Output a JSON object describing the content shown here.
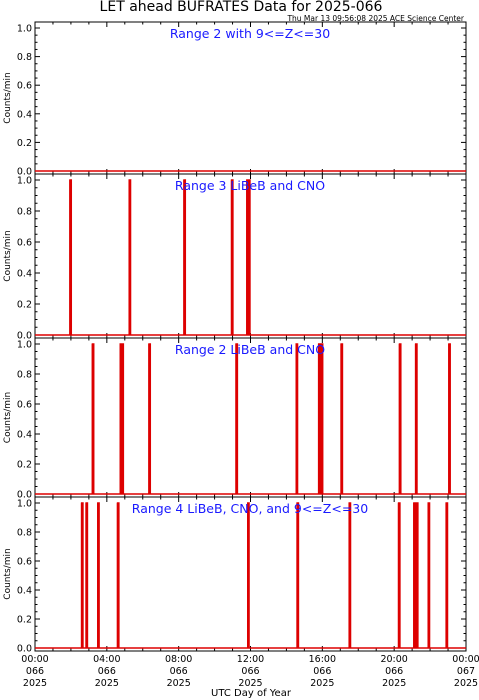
{
  "title": "LET ahead BUFRATES Data for 2025-066",
  "timestamp": "Thu Mar 13 09:56:08 2025 ACE Science Center",
  "xlabel": "UTC Day of Year",
  "colors": {
    "spike": "#dd0000",
    "label": "#1a1aff",
    "axis": "#000000"
  },
  "chart_data": {
    "type": "line",
    "xlim_hours": [
      0,
      24
    ],
    "x_ticks": [
      {
        "hour": 0,
        "lines": [
          "00:00",
          "066",
          "2025"
        ]
      },
      {
        "hour": 4,
        "lines": [
          "04:00",
          "066",
          "2025"
        ]
      },
      {
        "hour": 8,
        "lines": [
          "08:00",
          "066",
          "2025"
        ]
      },
      {
        "hour": 12,
        "lines": [
          "12:00",
          "066",
          "2025"
        ]
      },
      {
        "hour": 16,
        "lines": [
          "16:00",
          "066",
          "2025"
        ]
      },
      {
        "hour": 20,
        "lines": [
          "20:00",
          "066",
          "2025"
        ]
      },
      {
        "hour": 24,
        "lines": [
          "00:00",
          "067",
          "2025"
        ]
      }
    ],
    "panels": [
      {
        "label": "Range 2 with 9<=Z<=30",
        "ylabel": "Counts/min",
        "ylim": [
          0,
          1.0
        ],
        "y_ticks": [
          "0.0",
          "0.2",
          "0.4",
          "0.6",
          "0.8",
          "1.0"
        ],
        "spikes_hours": []
      },
      {
        "label": "Range 3 LiBeB and CNO",
        "ylabel": "Counts/min",
        "ylim": [
          0,
          1.0
        ],
        "y_ticks": [
          "0.0",
          "0.2",
          "0.4",
          "0.6",
          "0.8",
          "1.0"
        ],
        "spikes_hours": [
          1.95,
          5.25,
          8.3,
          10.95,
          11.8,
          11.9
        ]
      },
      {
        "label": "Range 2 LiBeB and CNO",
        "ylabel": "Counts/min",
        "ylim": [
          0,
          1.0
        ],
        "y_ticks": [
          "0.0",
          "0.2",
          "0.4",
          "0.6",
          "0.8",
          "1.0"
        ],
        "spikes_hours": [
          3.2,
          4.75,
          4.85,
          6.35,
          11.2,
          14.55,
          15.8,
          15.95,
          17.05,
          20.3,
          21.2,
          23.05
        ]
      },
      {
        "label": "Range 4 LiBeB, CNO, and 9<=Z<=30",
        "ylabel": "Counts/min",
        "ylim": [
          0,
          1.0
        ],
        "y_ticks": [
          "0.0",
          "0.2",
          "0.4",
          "0.6",
          "0.8",
          "1.0"
        ],
        "spikes_hours": [
          2.6,
          2.85,
          3.5,
          4.6,
          11.85,
          14.6,
          17.5,
          20.25,
          21.1,
          21.25,
          21.9,
          22.9
        ]
      }
    ]
  }
}
